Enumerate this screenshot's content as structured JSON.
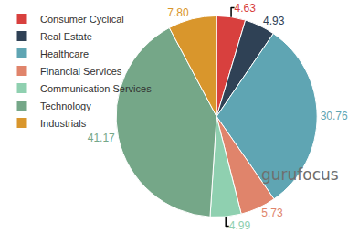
{
  "chart_data": {
    "type": "pie",
    "categories": [
      "Consumer Cyclical",
      "Real Estate",
      "Healthcare",
      "Financial Services",
      "Communication Services",
      "Technology",
      "Industrials"
    ],
    "values": [
      4.63,
      4.93,
      30.76,
      5.73,
      4.99,
      41.17,
      7.8
    ],
    "value_labels": [
      "4.63",
      "4.93",
      "30.76",
      "5.73",
      "4.99",
      "41.17",
      "7.80"
    ],
    "colors": [
      "#d8403e",
      "#2f4155",
      "#5fa5b3",
      "#e0846b",
      "#8fd0b0",
      "#75a788",
      "#d9962c"
    ],
    "data_labels": true,
    "legend": "top-left",
    "annotations": [
      "gurufocus"
    ]
  }
}
